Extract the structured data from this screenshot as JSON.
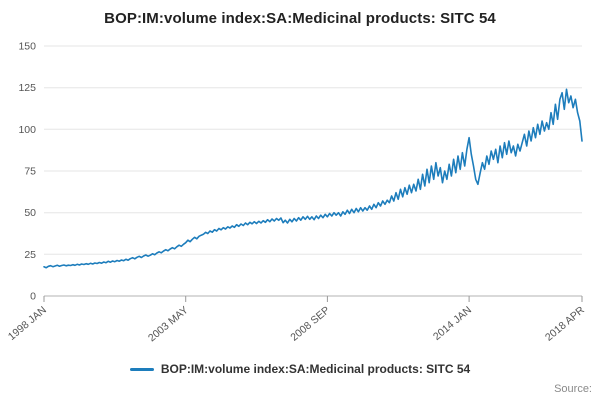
{
  "title": "BOP:IM:volume index:SA:Medicinal products: SITC 54",
  "source_label": "Source:",
  "chart_data": {
    "type": "line",
    "title": "BOP:IM:volume index:SA:Medicinal products: SITC 54",
    "legend": "BOP:IM:volume index:SA:Medicinal products: SITC 54",
    "legend_position": "bottom-center",
    "color": "#1d7dbc",
    "grid": true,
    "ylim": [
      0,
      150
    ],
    "y_ticks": [
      0,
      25,
      50,
      75,
      100,
      125,
      150
    ],
    "xlabel": "",
    "ylabel": "",
    "frequency": "monthly",
    "x_start": "1998 JAN",
    "x_end": "2018 APR",
    "x_ticks": [
      {
        "label": "1998 JAN",
        "index": 0
      },
      {
        "label": "2003 MAY",
        "index": 64
      },
      {
        "label": "2008 SEP",
        "index": 128
      },
      {
        "label": "2014 JAN",
        "index": 192
      },
      {
        "label": "2018 APR",
        "index": 243
      }
    ],
    "values": [
      17.5,
      17.0,
      17.8,
      18.2,
      17.6,
      18.0,
      18.4,
      17.9,
      18.3,
      18.6,
      18.1,
      18.5,
      18.3,
      18.8,
      18.4,
      19.0,
      18.6,
      19.2,
      18.9,
      19.4,
      19.0,
      19.6,
      19.2,
      19.8,
      19.5,
      20.1,
      19.7,
      20.4,
      20.0,
      20.8,
      20.3,
      21.0,
      20.6,
      21.3,
      20.9,
      21.6,
      21.2,
      22.0,
      21.5,
      22.4,
      23.0,
      22.3,
      23.2,
      23.8,
      23.1,
      24.0,
      24.6,
      23.9,
      24.5,
      25.3,
      24.8,
      25.8,
      26.5,
      25.9,
      27.0,
      27.8,
      27.1,
      28.2,
      29.0,
      28.3,
      29.5,
      30.5,
      29.8,
      31.0,
      32.0,
      33.5,
      32.6,
      34.0,
      35.2,
      34.3,
      35.8,
      36.5,
      37.0,
      38.2,
      37.5,
      39.0,
      38.3,
      39.8,
      39.0,
      40.5,
      39.7,
      41.0,
      40.2,
      41.5,
      40.8,
      42.0,
      41.2,
      42.8,
      41.8,
      43.2,
      42.3,
      43.8,
      42.8,
      44.2,
      43.3,
      44.6,
      43.5,
      44.8,
      43.8,
      45.2,
      44.2,
      45.8,
      44.6,
      46.2,
      45.0,
      46.5,
      45.4,
      46.8,
      44.0,
      45.5,
      43.8,
      46.0,
      44.5,
      46.5,
      45.0,
      47.0,
      45.5,
      47.5,
      46.0,
      47.8,
      46.0,
      47.5,
      45.8,
      48.0,
      46.5,
      48.5,
      47.0,
      49.0,
      47.5,
      49.5,
      48.0,
      50.0,
      48.5,
      50.0,
      48.0,
      50.5,
      49.0,
      51.5,
      49.5,
      52.0,
      50.0,
      52.5,
      50.5,
      53.0,
      51.0,
      53.0,
      51.5,
      54.0,
      52.0,
      55.0,
      53.0,
      56.0,
      54.0,
      57.0,
      55.0,
      57.5,
      56.0,
      60.0,
      57.0,
      62.0,
      58.0,
      64.0,
      59.5,
      65.0,
      61.0,
      66.5,
      62.0,
      67.0,
      63.0,
      70.0,
      64.0,
      73.0,
      66.0,
      76.0,
      68.0,
      78.0,
      70.0,
      80.0,
      72.0,
      77.0,
      68.0,
      75.0,
      70.0,
      79.0,
      72.0,
      82.0,
      74.0,
      84.0,
      76.0,
      86.0,
      78.0,
      88.0,
      95.0,
      85.0,
      78.0,
      70.0,
      67.0,
      74.0,
      80.0,
      76.0,
      84.0,
      79.0,
      87.0,
      82.0,
      88.0,
      80.0,
      90.0,
      83.0,
      92.0,
      85.0,
      93.0,
      86.0,
      90.0,
      84.0,
      91.0,
      87.0,
      92.0,
      97.0,
      90.0,
      99.0,
      93.0,
      101.0,
      95.0,
      103.0,
      97.0,
      105.0,
      99.0,
      104.0,
      100.0,
      110.0,
      103.0,
      115.0,
      106.0,
      118.0,
      122.0,
      112.0,
      124.0,
      116.0,
      120.0,
      113.0,
      118.0,
      110.0,
      105.0,
      93.0
    ]
  }
}
